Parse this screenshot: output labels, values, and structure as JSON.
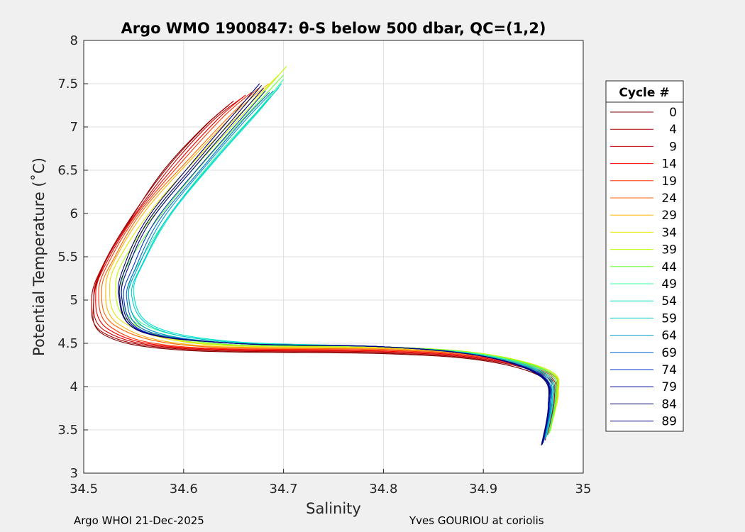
{
  "chart_data": {
    "type": "line",
    "title": "Argo WMO 1900847: θ-S below 500 dbar,  QC=(1,2)",
    "xlabel": "Salinity",
    "ylabel": "Potential Temperature (˚C)",
    "xlim": [
      34.5,
      35
    ],
    "ylim": [
      3,
      8
    ],
    "xticks": [
      "34.5",
      "34.6",
      "34.7",
      "34.8",
      "34.9",
      "35"
    ],
    "yticks": [
      "3",
      "3.5",
      "4",
      "4.5",
      "5",
      "5.5",
      "6",
      "6.5",
      "7",
      "7.5",
      "8"
    ],
    "grid": true,
    "legend_title": "Cycle #",
    "legend_position": "right-outside",
    "series": [
      {
        "name": "0",
        "color": "#7f0000",
        "s": [
          34.645,
          34.62,
          34.58,
          34.545,
          34.52,
          34.51,
          34.52,
          34.6,
          34.8,
          34.9,
          34.96,
          34.968,
          34.962
        ],
        "t": [
          7.25,
          7.0,
          6.5,
          5.9,
          5.4,
          5.0,
          4.6,
          4.42,
          4.38,
          4.3,
          4.1,
          3.8,
          3.38
        ]
      },
      {
        "name": "4",
        "color": "#a60000",
        "s": [
          34.65,
          34.625,
          34.585,
          34.547,
          34.52,
          34.508,
          34.52,
          34.6,
          34.8,
          34.9,
          34.962,
          34.97,
          34.962
        ],
        "t": [
          7.3,
          7.05,
          6.55,
          5.95,
          5.42,
          5.02,
          4.62,
          4.43,
          4.39,
          4.31,
          4.12,
          3.82,
          3.4
        ]
      },
      {
        "name": "9",
        "color": "#cc0000",
        "s": [
          34.66,
          34.63,
          34.59,
          34.55,
          34.522,
          34.51,
          34.522,
          34.6,
          34.8,
          34.9,
          34.963,
          34.971,
          34.963
        ],
        "t": [
          7.35,
          7.08,
          6.58,
          5.97,
          5.45,
          5.05,
          4.64,
          4.44,
          4.4,
          4.32,
          4.13,
          3.84,
          3.42
        ]
      },
      {
        "name": "14",
        "color": "#f20000",
        "s": [
          34.662,
          34.635,
          34.595,
          34.553,
          34.525,
          34.512,
          34.525,
          34.6,
          34.8,
          34.9,
          34.964,
          34.972,
          34.964
        ],
        "t": [
          7.37,
          7.1,
          6.6,
          6.0,
          5.48,
          5.08,
          4.66,
          4.45,
          4.41,
          4.33,
          4.14,
          3.86,
          3.44
        ]
      },
      {
        "name": "19",
        "color": "#ff3300",
        "s": [
          34.668,
          34.64,
          34.6,
          34.556,
          34.528,
          34.515,
          34.528,
          34.6,
          34.8,
          34.9,
          34.965,
          34.973,
          34.965
        ],
        "t": [
          7.4,
          7.12,
          6.62,
          6.02,
          5.5,
          5.1,
          4.68,
          4.46,
          4.42,
          4.34,
          4.15,
          3.88,
          3.46
        ]
      },
      {
        "name": "24",
        "color": "#ff6600",
        "s": [
          34.675,
          34.648,
          34.607,
          34.56,
          34.532,
          34.518,
          34.532,
          34.61,
          34.8,
          34.9,
          34.966,
          34.974,
          34.966
        ],
        "t": [
          7.45,
          7.15,
          6.65,
          6.05,
          5.52,
          5.12,
          4.7,
          4.47,
          4.43,
          4.35,
          4.16,
          3.9,
          3.48
        ]
      },
      {
        "name": "29",
        "color": "#ffb300",
        "s": [
          34.685,
          34.655,
          34.612,
          34.565,
          34.535,
          34.522,
          34.535,
          34.61,
          34.8,
          34.9,
          34.966,
          34.975,
          34.966
        ],
        "t": [
          7.5,
          7.2,
          6.68,
          6.08,
          5.55,
          5.15,
          4.72,
          4.48,
          4.44,
          4.36,
          4.17,
          3.92,
          3.5
        ]
      },
      {
        "name": "34",
        "color": "#e6e600",
        "s": [
          34.695,
          34.665,
          34.62,
          34.572,
          34.54,
          34.526,
          34.54,
          34.62,
          34.8,
          34.9,
          34.967,
          34.975,
          34.967
        ],
        "t": [
          7.6,
          7.25,
          6.72,
          6.1,
          5.57,
          5.17,
          4.74,
          4.49,
          4.45,
          4.37,
          4.18,
          3.93,
          3.5
        ]
      },
      {
        "name": "39",
        "color": "#b3ff00",
        "s": [
          34.703,
          34.672,
          34.628,
          34.58,
          34.546,
          34.532,
          34.546,
          34.62,
          34.8,
          34.9,
          34.967,
          34.974,
          34.967
        ],
        "t": [
          7.7,
          7.3,
          6.75,
          6.12,
          5.58,
          5.18,
          4.75,
          4.5,
          4.46,
          4.38,
          4.18,
          3.92,
          3.48
        ]
      },
      {
        "name": "44",
        "color": "#66ff33",
        "s": [
          34.7,
          34.672,
          34.63,
          34.585,
          34.552,
          34.538,
          34.552,
          34.63,
          34.8,
          34.9,
          34.966,
          34.973,
          34.966
        ],
        "t": [
          7.6,
          7.25,
          6.72,
          6.1,
          5.57,
          5.17,
          4.74,
          4.5,
          4.46,
          4.37,
          4.17,
          3.9,
          3.46
        ]
      },
      {
        "name": "49",
        "color": "#33ff99",
        "s": [
          34.7,
          34.675,
          34.634,
          34.59,
          34.56,
          34.545,
          34.56,
          34.64,
          34.8,
          34.9,
          34.965,
          34.972,
          34.965
        ],
        "t": [
          7.55,
          7.2,
          6.68,
          6.05,
          5.52,
          5.12,
          4.72,
          4.52,
          4.46,
          4.37,
          4.16,
          3.88,
          3.44
        ]
      },
      {
        "name": "54",
        "color": "#00e6cc",
        "s": [
          34.698,
          34.673,
          34.632,
          34.588,
          34.562,
          34.55,
          34.57,
          34.65,
          34.8,
          34.9,
          34.963,
          34.97,
          34.963
        ],
        "t": [
          7.5,
          7.15,
          6.62,
          6.0,
          5.48,
          5.08,
          4.7,
          4.52,
          4.46,
          4.36,
          4.15,
          3.86,
          3.42
        ]
      },
      {
        "name": "59",
        "color": "#00cccc",
        "s": [
          34.695,
          34.668,
          34.628,
          34.585,
          34.56,
          34.548,
          34.57,
          34.65,
          34.8,
          34.9,
          34.962,
          34.969,
          34.962
        ],
        "t": [
          7.45,
          7.1,
          6.58,
          5.97,
          5.45,
          5.05,
          4.68,
          4.51,
          4.46,
          4.36,
          4.14,
          3.84,
          3.4
        ]
      },
      {
        "name": "64",
        "color": "#0099cc",
        "s": [
          34.69,
          34.662,
          34.622,
          34.58,
          34.556,
          34.545,
          34.565,
          34.65,
          34.8,
          34.9,
          34.961,
          34.968,
          34.961
        ],
        "t": [
          7.42,
          7.08,
          6.55,
          5.95,
          5.42,
          5.03,
          4.66,
          4.5,
          4.46,
          4.35,
          4.13,
          3.82,
          3.38
        ]
      },
      {
        "name": "69",
        "color": "#0066cc",
        "s": [
          34.686,
          34.658,
          34.618,
          34.576,
          34.553,
          34.543,
          34.562,
          34.65,
          34.8,
          34.9,
          34.96,
          34.967,
          34.96
        ],
        "t": [
          7.4,
          7.06,
          6.52,
          5.93,
          5.4,
          5.02,
          4.65,
          4.5,
          4.46,
          4.35,
          4.12,
          3.8,
          3.36
        ]
      },
      {
        "name": "74",
        "color": "#0033cc",
        "s": [
          34.682,
          34.655,
          34.615,
          34.572,
          34.55,
          34.54,
          34.56,
          34.65,
          34.8,
          34.9,
          34.96,
          34.966,
          34.96
        ],
        "t": [
          7.42,
          7.06,
          6.53,
          5.92,
          5.4,
          5.02,
          4.64,
          4.5,
          4.46,
          4.35,
          4.12,
          3.8,
          3.35
        ]
      },
      {
        "name": "79",
        "color": "#000099",
        "s": [
          34.68,
          34.652,
          34.612,
          34.568,
          34.546,
          34.538,
          34.558,
          34.65,
          34.8,
          34.9,
          34.959,
          34.966,
          34.959
        ],
        "t": [
          7.45,
          7.08,
          6.55,
          5.93,
          5.42,
          5.03,
          4.64,
          4.5,
          4.46,
          4.35,
          4.12,
          3.78,
          3.34
        ]
      },
      {
        "name": "84",
        "color": "#000066",
        "s": [
          34.678,
          34.65,
          34.61,
          34.566,
          34.544,
          34.536,
          34.556,
          34.65,
          34.8,
          34.9,
          34.959,
          34.965,
          34.959
        ],
        "t": [
          7.48,
          7.1,
          6.56,
          5.94,
          5.43,
          5.04,
          4.64,
          4.5,
          4.46,
          4.35,
          4.11,
          3.78,
          3.33
        ]
      },
      {
        "name": "89",
        "color": "#000080",
        "s": [
          34.676,
          34.648,
          34.608,
          34.564,
          34.542,
          34.535,
          34.555,
          34.65,
          34.8,
          34.9,
          34.958,
          34.965,
          34.958
        ],
        "t": [
          7.5,
          7.12,
          6.58,
          5.95,
          5.44,
          5.05,
          4.65,
          4.5,
          4.46,
          4.35,
          4.11,
          3.77,
          3.32
        ]
      }
    ]
  },
  "footer": {
    "left": "Argo WHOI 21-Dec-2025",
    "right": "Yves GOURIOU at coriolis"
  }
}
